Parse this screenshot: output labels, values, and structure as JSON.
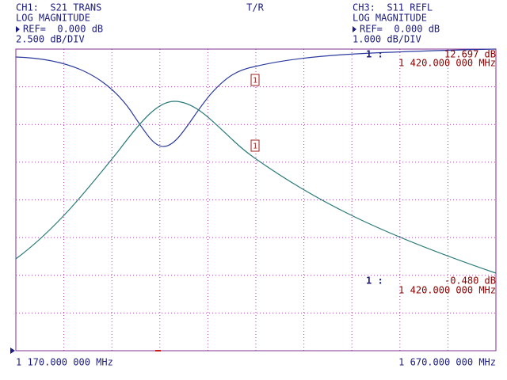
{
  "header": {
    "left": {
      "channel": "CH1:  S21 TRANS",
      "format": "LOG MAGNITUDE",
      "ref": "REF=  0.000 dB",
      "scale": "2.500 dB/DIV"
    },
    "center": "T/R",
    "right": {
      "channel": "CH3:  S11 REFL",
      "format": "LOG MAGNITUDE",
      "ref": "REF=  0.000 dB",
      "scale": "1.000 dB/DIV"
    }
  },
  "markers": [
    {
      "index": "1 :",
      "value": "12.697 dB",
      "frequency": "1 420.000 000 MHz",
      "flag": "1"
    },
    {
      "index": "1 :",
      "value": "-0.480 dB",
      "frequency": "1 420.000 000 MHz",
      "flag": "1"
    }
  ],
  "footer": {
    "start": "1 170.000 000 MHz",
    "stop": "1 670.000 000 MHz"
  }
}
